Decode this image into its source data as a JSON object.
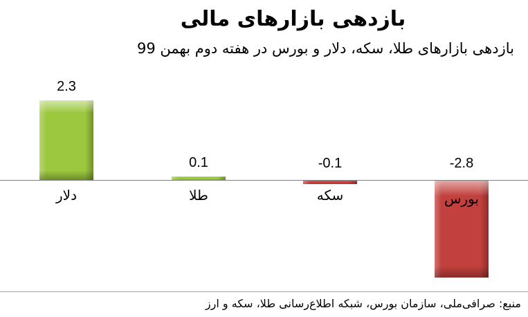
{
  "title": "بازدهی بازارهای مالی",
  "subtitle": "بازدهی بازارهای طلا، سکه، دلار و بورس در هفته دوم بهمن 99",
  "source": "منبع: صرافی‌ملی، سازمان بورس، شبکه اطلاع‌رسانی طلا، سکه و ارز",
  "colors": {
    "positive_bar": "#9CC83F",
    "negative_bar": "#C2403D",
    "axis_line": "#808080",
    "divider_line": "#A6A6A6",
    "background": "#FFFFFF",
    "text": "#000000"
  },
  "chart_data": {
    "type": "bar",
    "title": "بازدهی بازارهای مالی",
    "subtitle": "بازدهی بازارهای طلا، سکه، دلار و بورس در هفته دوم بهمن 99",
    "categories": [
      "دلار",
      "طلا",
      "سکه",
      "بورس"
    ],
    "values": [
      2.3,
      0.1,
      -0.1,
      -2.8
    ],
    "value_labels": [
      "2.3",
      "0.1",
      "-0.1",
      "-2.8"
    ],
    "bar_colors": [
      "#9CC83F",
      "#9CC83F",
      "#C2403D",
      "#C2403D"
    ],
    "unit": "percent",
    "baseline": 0,
    "ylim": [
      -3.2,
      2.8
    ],
    "grid": false,
    "legend": false,
    "xlabel": "",
    "ylabel": "",
    "source_note": "منبع: صرافی‌ملی، سازمان بورس، شبکه اطلاع‌رسانی طلا، سکه و ارز"
  }
}
